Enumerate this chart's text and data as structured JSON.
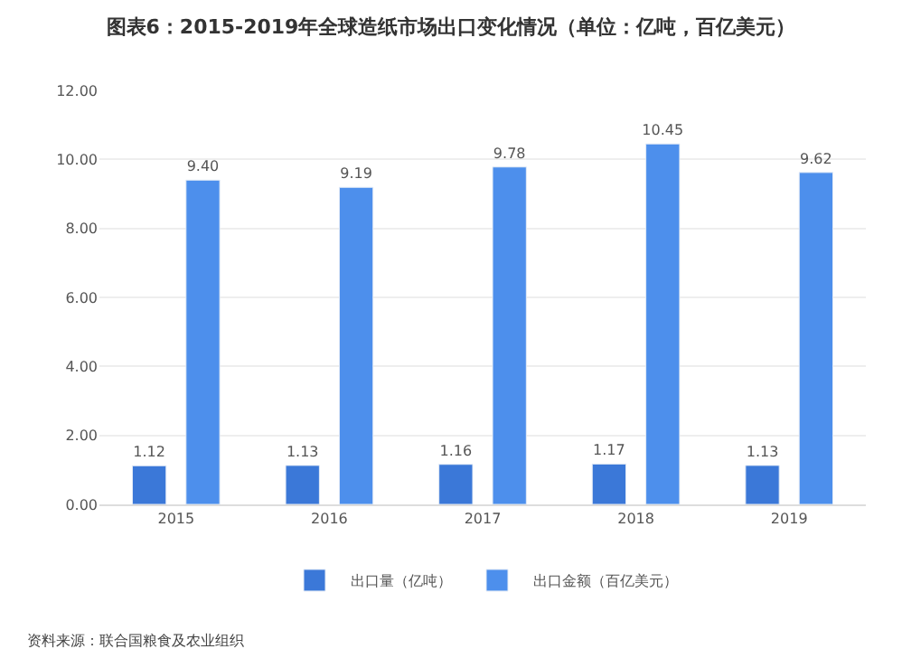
{
  "chart_data": {
    "type": "bar",
    "title": "图表6：2015-2019年全球造纸市场出口变化情况（单位：亿吨，百亿美元）",
    "categories": [
      "2015",
      "2016",
      "2017",
      "2018",
      "2019"
    ],
    "series": [
      {
        "name": "出口量（亿吨）",
        "color": "#3b78d8",
        "values": [
          1.12,
          1.13,
          1.16,
          1.17,
          1.13
        ],
        "value_labels": [
          "1.12",
          "1.13",
          "1.16",
          "1.17",
          "1.13"
        ]
      },
      {
        "name": "出口金额（百亿美元）",
        "color": "#4d8fec",
        "values": [
          9.4,
          9.19,
          9.78,
          10.45,
          9.62
        ],
        "value_labels": [
          "9.40",
          "9.19",
          "9.78",
          "10.45",
          "9.62"
        ]
      }
    ],
    "ylim": [
      0,
      12
    ],
    "yticks": [
      {
        "value": 0,
        "label": "0.00"
      },
      {
        "value": 2,
        "label": "2.00"
      },
      {
        "value": 4,
        "label": "4.00"
      },
      {
        "value": 6,
        "label": "6.00"
      },
      {
        "value": 8,
        "label": "8.00"
      },
      {
        "value": 10,
        "label": "10.00"
      },
      {
        "value": 12,
        "label": "12.00"
      }
    ],
    "grid": "y",
    "legend": "bottom",
    "annotations": [
      "资料来源：联合国粮食及农业组织"
    ]
  }
}
